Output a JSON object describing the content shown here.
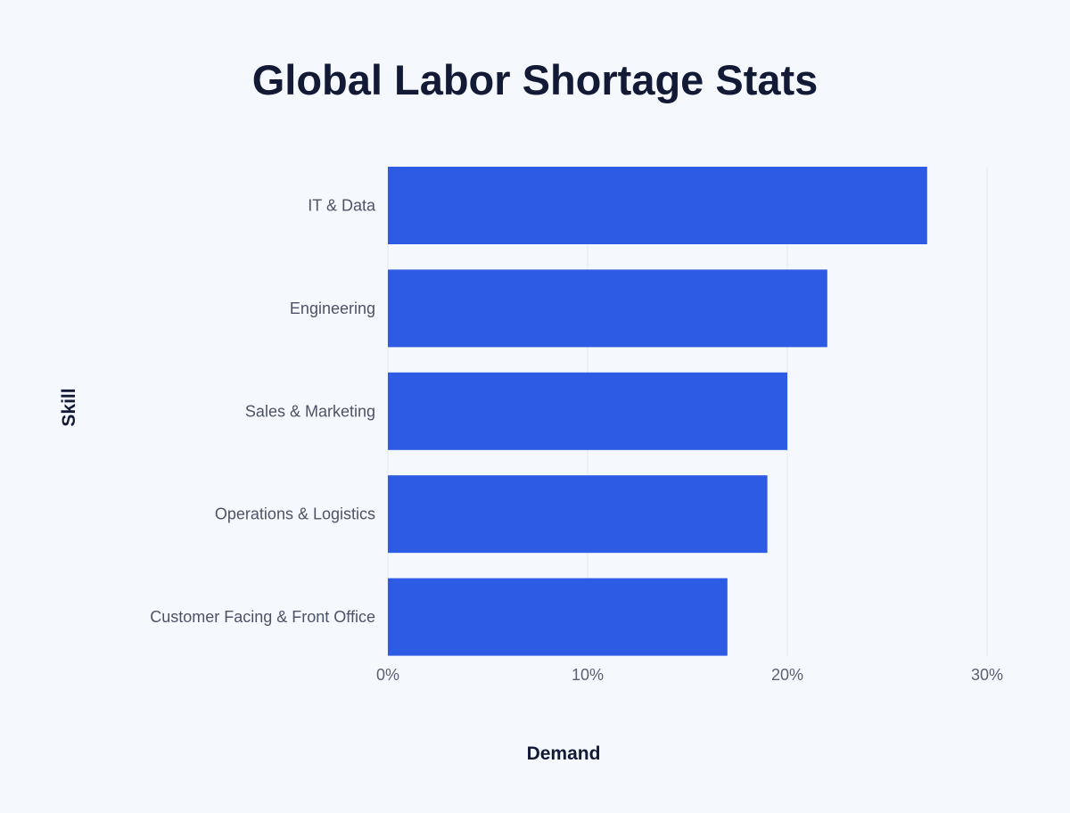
{
  "chart_data": {
    "type": "bar",
    "orientation": "horizontal",
    "title": "Global Labor Shortage Stats",
    "xlabel": "Demand",
    "ylabel": "Skill",
    "categories": [
      "IT & Data",
      "Engineering",
      "Sales & Marketing",
      "Operations & Logistics",
      "Customer Facing & Front Office"
    ],
    "values": [
      27,
      22,
      20,
      19,
      17
    ],
    "xlim": [
      0,
      30
    ],
    "xticks": [
      0,
      10,
      20,
      30
    ],
    "xtick_labels": [
      "0%",
      "10%",
      "20%",
      "30%"
    ],
    "grid": true,
    "bar_color": "#2d5be3"
  }
}
